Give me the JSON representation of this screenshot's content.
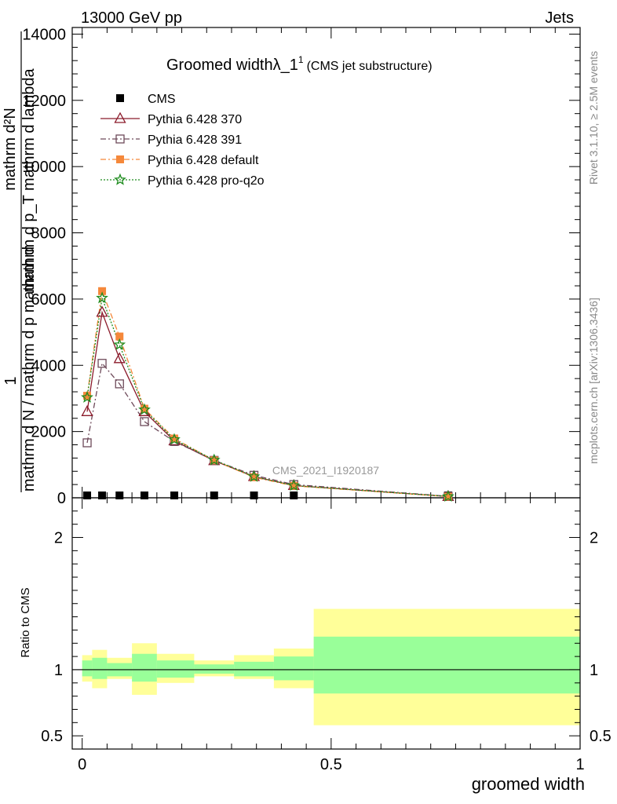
{
  "header": {
    "left": "13000 GeV pp",
    "right": "Jets"
  },
  "side_labels": {
    "rivet": "Rivet 3.1.10, ≥ 2.5M events",
    "mcplots": "mcplots.cern.ch [arXiv:1306.3436]"
  },
  "chart_data": {
    "type": "line",
    "title_main": "Groomed widthλ_1",
    "title_sup": "1",
    "title_sub": "(CMS jet substructure)",
    "analysis_label": "CMS_2021_I1920187",
    "xlabel": "groomed width",
    "ylabel_upper_num": "mathrm d²N",
    "ylabel_upper_den": "mathrm d p_T mathrm d lambda",
    "ylabel_lower": "mathrm d N / mathrm d p_T mathrm d",
    "ylabel_numerator_one": "1",
    "ylabel_lower_full": "mathrm d N / mathrm d p mathrm d",
    "ylabel_T": "T",
    "ratio_ylabel": "Ratio to CMS",
    "xlim": [
      -0.02,
      1.0
    ],
    "ylim": [
      0,
      14200
    ],
    "ratio_ylim": [
      0.4,
      2.3
    ],
    "x_ticks": [
      {
        "v": 0,
        "label": "0"
      },
      {
        "v": 0.5,
        "label": "0.5"
      },
      {
        "v": 1,
        "label": "1"
      }
    ],
    "y_ticks": [
      {
        "v": 0,
        "label": "0"
      },
      {
        "v": 2000,
        "label": "2000"
      },
      {
        "v": 4000,
        "label": "4000"
      },
      {
        "v": 6000,
        "label": "6000"
      },
      {
        "v": 8000,
        "label": "8000"
      },
      {
        "v": 10000,
        "label": "10000"
      },
      {
        "v": 12000,
        "label": "12000"
      },
      {
        "v": 14000,
        "label": "14000"
      }
    ],
    "ratio_ticks": [
      {
        "v": 0.5,
        "label": "0.5"
      },
      {
        "v": 1,
        "label": "1"
      },
      {
        "v": 2,
        "label": "2"
      }
    ],
    "series": [
      {
        "name": "CMS",
        "color": "#000000",
        "marker": "square-filled",
        "line": "none",
        "x": [
          0.01,
          0.04,
          0.075,
          0.125,
          0.185,
          0.265,
          0.345,
          0.425,
          0.735
        ],
        "y": [
          0,
          0,
          0,
          0,
          0,
          0,
          0,
          0,
          0
        ]
      },
      {
        "name": "Pythia 6.428 370",
        "color": "#8b1a2a",
        "marker": "triangle-open",
        "line": "solid",
        "x": [
          0.01,
          0.04,
          0.075,
          0.125,
          0.185,
          0.265,
          0.345,
          0.425,
          0.735
        ],
        "y": [
          2600,
          5600,
          4200,
          2600,
          1720,
          1120,
          640,
          370,
          40
        ]
      },
      {
        "name": "Pythia 6.428 391",
        "color": "#6e4a5a",
        "marker": "square-open",
        "line": "dashdot",
        "x": [
          0.01,
          0.04,
          0.075,
          0.125,
          0.185,
          0.265,
          0.345,
          0.425,
          0.735
        ],
        "y": [
          1660,
          4060,
          3440,
          2300,
          1700,
          1130,
          680,
          400,
          45
        ]
      },
      {
        "name": "Pythia 6.428 default",
        "color": "#f5883a",
        "marker": "square-filled",
        "line": "dashdot",
        "x": [
          0.01,
          0.04,
          0.075,
          0.125,
          0.185,
          0.265,
          0.345,
          0.425,
          0.735
        ],
        "y": [
          3080,
          6240,
          4870,
          2690,
          1790,
          1130,
          620,
          360,
          35
        ]
      },
      {
        "name": "Pythia 6.428 pro-q2o",
        "color": "#1e8c1e",
        "marker": "star-open",
        "line": "dotted",
        "x": [
          0.01,
          0.04,
          0.075,
          0.125,
          0.185,
          0.265,
          0.345,
          0.425,
          0.735
        ],
        "y": [
          3030,
          6030,
          4620,
          2660,
          1760,
          1140,
          640,
          370,
          40
        ]
      }
    ],
    "ratio_bands": [
      {
        "x0": 0.0,
        "x1": 0.02,
        "inner": [
          0.95,
          1.07
        ],
        "outer": [
          0.91,
          1.11
        ]
      },
      {
        "x0": 0.02,
        "x1": 0.05,
        "inner": [
          0.93,
          1.09
        ],
        "outer": [
          0.86,
          1.15
        ]
      },
      {
        "x0": 0.05,
        "x1": 0.1,
        "inner": [
          0.95,
          1.05
        ],
        "outer": [
          0.93,
          1.09
        ]
      },
      {
        "x0": 0.1,
        "x1": 0.15,
        "inner": [
          0.91,
          1.12
        ],
        "outer": [
          0.81,
          1.2
        ]
      },
      {
        "x0": 0.15,
        "x1": 0.225,
        "inner": [
          0.94,
          1.07
        ],
        "outer": [
          0.9,
          1.12
        ]
      },
      {
        "x0": 0.225,
        "x1": 0.305,
        "inner": [
          0.97,
          1.04
        ],
        "outer": [
          0.95,
          1.07
        ]
      },
      {
        "x0": 0.305,
        "x1": 0.385,
        "inner": [
          0.95,
          1.06
        ],
        "outer": [
          0.93,
          1.11
        ]
      },
      {
        "x0": 0.385,
        "x1": 0.465,
        "inner": [
          0.92,
          1.1
        ],
        "outer": [
          0.86,
          1.16
        ]
      },
      {
        "x0": 0.465,
        "x1": 1.0,
        "inner": [
          0.82,
          1.25
        ],
        "outer": [
          0.58,
          1.46
        ]
      }
    ],
    "band_colors": {
      "inner": "#99ff99",
      "outer": "#ffff99"
    }
  }
}
